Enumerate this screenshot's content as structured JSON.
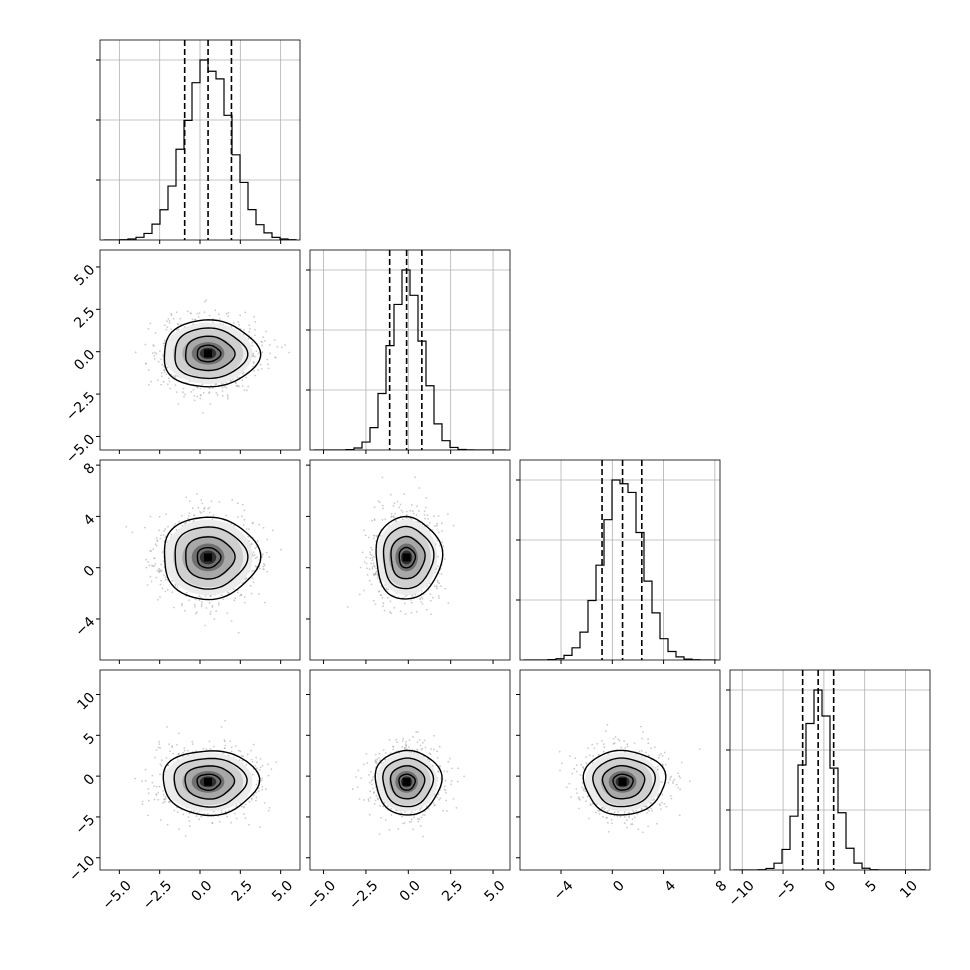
{
  "chart_data": {
    "type": "corner",
    "params": 4,
    "ranges": [
      [
        -6.2,
        6.2
      ],
      [
        -5.8,
        6.0
      ],
      [
        -7.2,
        8.4
      ],
      [
        -11.5,
        13.0
      ]
    ],
    "means": [
      0.5,
      -0.1,
      0.8,
      -0.7
    ],
    "sigmas": [
      1.45,
      0.95,
      1.55,
      1.9
    ],
    "quantiles": [
      [
        -0.95,
        0.5,
        1.95
      ],
      [
        -1.1,
        -0.1,
        0.8
      ],
      [
        -0.8,
        0.8,
        2.3
      ],
      [
        -2.6,
        -0.7,
        1.2
      ]
    ],
    "hist_grid": [
      true,
      true,
      true,
      true
    ],
    "x_ticks": [
      [
        "−5.0",
        "−2.5",
        "0.0",
        "2.5",
        "5.0"
      ],
      [
        "−5.0",
        "−2.5",
        "0.0",
        "2.5",
        "5.0"
      ],
      [
        "−4",
        "0",
        "4",
        "8"
      ],
      [
        "−10",
        "−5",
        "0",
        "5",
        "10"
      ]
    ],
    "x_tick_values": [
      [
        -5.0,
        -2.5,
        0.0,
        2.5,
        5.0
      ],
      [
        -5.0,
        -2.5,
        0.0,
        2.5,
        5.0
      ],
      [
        -4,
        0,
        4,
        8
      ],
      [
        -10,
        -5,
        0,
        5,
        10
      ]
    ],
    "y_ticks": [
      [],
      [
        "−5.0",
        "−2.5",
        "0.0",
        "2.5",
        "5.0"
      ],
      [
        "−4",
        "0",
        "4",
        "8"
      ],
      [
        "−10",
        "−5",
        "0",
        "5",
        "10"
      ]
    ],
    "y_tick_values": [
      [],
      [
        -5.0,
        -2.5,
        0.0,
        2.5,
        5.0
      ],
      [
        -4,
        0,
        4,
        8
      ],
      [
        -10,
        -5,
        0,
        5,
        10
      ]
    ],
    "colors": {
      "contour": "#000000",
      "points": "#a0a0a0",
      "grid": "#b0b0b0",
      "hist": "#000000"
    }
  }
}
